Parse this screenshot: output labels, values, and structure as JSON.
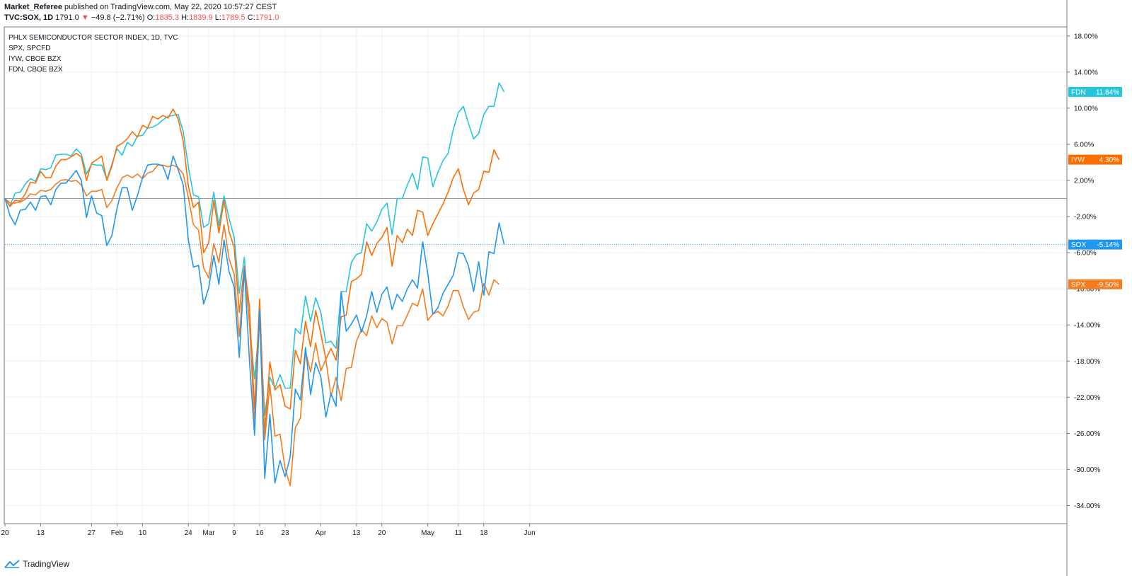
{
  "header": {
    "author": "Market_Referee",
    "published_text": "published on TradingView.com, May 22, 2020 10:57:27 CEST",
    "symbol": "TVC:SOX, 1D",
    "price": "1791.0",
    "change_arrow": "▼",
    "change": "−49.8 (−2.71%)",
    "open_label": "O:",
    "open": "1835.3",
    "high_label": "H:",
    "high": "1839.9",
    "low_label": "L:",
    "low": "1789.5",
    "close_label": "C:",
    "close": "1791.0"
  },
  "legend": [
    "PHLX SEMICONDUCTOR SECTOR INDEX, 1D, TVC",
    "SPX, SPCFD",
    "IYW, CBOE BZX",
    "FDN, CBOE BZX"
  ],
  "brand": "TradingView",
  "colors": {
    "SOX": "#2196f3",
    "SPX": "#f57c1f",
    "IYW": "#ff6d00",
    "FDN": "#26c6da"
  },
  "chart_data": {
    "type": "line",
    "title": "PHLX SEMICONDUCTOR SECTOR INDEX, 1D, TVC",
    "ylabel": "",
    "xlabel": "",
    "ylim": [
      -36,
      19
    ],
    "y_ticks": [
      "18.00%",
      "14.00%",
      "10.00%",
      "6.00%",
      "2.00%",
      "-2.00%",
      "-6.00%",
      "-10.00%",
      "-14.00%",
      "-18.00%",
      "-22.00%",
      "-26.00%",
      "-30.00%",
      "-34.00%"
    ],
    "x_tick_labels": [
      "20",
      "13",
      "27",
      "Feb",
      "10",
      "24",
      "Mar",
      "9",
      "16",
      "23",
      "Apr",
      "13",
      "20",
      "May",
      "11",
      "18",
      "Jun"
    ],
    "x_tick_index": [
      0,
      7,
      17,
      22,
      27,
      36,
      40,
      45,
      50,
      55,
      62,
      69,
      74,
      83,
      89,
      94,
      103
    ],
    "grid": true,
    "series": [
      {
        "name": "FDN",
        "last_label": "11.84%",
        "values": [
          0,
          -0.8,
          0.6,
          0.7,
          1.6,
          2.2,
          1.9,
          3.3,
          3.2,
          3.4,
          4.8,
          4.9,
          4.9,
          4.7,
          5.5,
          4.9,
          2.7,
          3.8,
          3.7,
          3.7,
          2.1,
          3.8,
          5.5,
          4.8,
          6.2,
          5.8,
          6.9,
          7.0,
          7.8,
          7.9,
          8.2,
          8.7,
          9.1,
          9.2,
          9.3,
          7.4,
          3.5,
          0.4,
          0.2,
          -3.2,
          -2.8,
          0.7,
          -3.0,
          0.3,
          -2.2,
          -4.3,
          -10.5,
          -6.5,
          -14.0,
          -20.0,
          -13.5,
          -24.0,
          -19.8,
          -21.0,
          -19.5,
          -21.0,
          -21.0,
          -14.4,
          -15.0,
          -10.8,
          -13.6,
          -11.0,
          -12.6,
          -16.0,
          -15.8,
          -16.6,
          -10.3,
          -10.3,
          -7.1,
          -6.2,
          -6.0,
          -2.8,
          -3.6,
          -2.6,
          -1.2,
          -0.5,
          -4.0,
          0.0,
          0.0,
          1.5,
          2.8,
          1.0,
          4.6,
          4.5,
          1.3,
          2.9,
          4.2,
          5.0,
          7.6,
          9.5,
          10.2,
          8.3,
          6.6,
          7.2,
          9.3,
          10.2,
          10.2,
          12.8,
          11.8
        ]
      },
      {
        "name": "IYW",
        "last_label": "4.30%",
        "values": [
          0,
          -0.9,
          -0.2,
          -0.3,
          0.5,
          1.8,
          1.7,
          3.0,
          2.3,
          2.3,
          3.6,
          4.3,
          4.3,
          4.6,
          5.0,
          4.6,
          2.0,
          3.9,
          4.3,
          4.7,
          2.0,
          3.6,
          5.8,
          6.1,
          6.6,
          7.4,
          6.8,
          8.1,
          7.8,
          9.1,
          8.8,
          9.2,
          8.9,
          9.9,
          8.8,
          6.3,
          1.4,
          -1.0,
          -0.4,
          -6.0,
          -4.9,
          -0.2,
          -3.8,
          -0.2,
          -3.7,
          -5.4,
          -12.6,
          -7.5,
          -12.0,
          -23.3,
          -11.1,
          -26.1,
          -18.1,
          -21.2,
          -20.6,
          -23.0,
          -23.3,
          -16.8,
          -18.3,
          -13.6,
          -16.4,
          -12.4,
          -14.9,
          -17.8,
          -16.6,
          -17.9,
          -13.1,
          -12.9,
          -9.2,
          -8.9,
          -8.4,
          -4.8,
          -6.3,
          -5.0,
          -4.3,
          -3.2,
          -7.5,
          -4.1,
          -4.9,
          -3.4,
          -4.1,
          -1.3,
          -1.5,
          -4.1,
          -2.8,
          -1.7,
          -0.6,
          0.7,
          2.3,
          3.3,
          1.0,
          -0.7,
          0.6,
          1.0,
          3.0,
          2.9,
          5.4,
          4.3
        ]
      },
      {
        "name": "SPX",
        "last_label": "-9.50%",
        "values": [
          0,
          -0.5,
          -0.5,
          -0.4,
          -0.1,
          0.5,
          0.4,
          0.9,
          0.8,
          1.0,
          1.6,
          2.0,
          2.1,
          1.9,
          2.0,
          1.5,
          0.3,
          0.8,
          0.8,
          1.0,
          -1.0,
          -0.2,
          1.2,
          2.3,
          2.6,
          2.3,
          2.7,
          2.2,
          2.8,
          3.0,
          3.7,
          3.7,
          3.5,
          3.7,
          3.4,
          2.7,
          0.1,
          -2.9,
          -3.5,
          -7.7,
          -8.8,
          -5.0,
          -7.1,
          -2.9,
          -6.7,
          -8.4,
          -15.3,
          -8.1,
          -13.7,
          -25.0,
          -12.8,
          -26.7,
          -20.6,
          -26.3,
          -26.1,
          -29.9,
          -31.8,
          -25.4,
          -24.3,
          -16.9,
          -19.2,
          -16.0,
          -19.1,
          -17.8,
          -21.9,
          -19.8,
          -22.4,
          -18.8,
          -18.7,
          -15.8,
          -14.5,
          -15.2,
          -13.0,
          -14.3,
          -13.3,
          -13.7,
          -16.1,
          -14.1,
          -14.1,
          -12.9,
          -11.6,
          -11.9,
          -10.0,
          -13.5,
          -12.8,
          -12.5,
          -13.0,
          -11.9,
          -10.2,
          -10.2,
          -12.0,
          -13.4,
          -12.6,
          -12.4,
          -9.4,
          -10.7,
          -9.0,
          -9.5
        ]
      },
      {
        "name": "SOX",
        "last_label": "-5.14%",
        "values": [
          0,
          -1.9,
          -2.9,
          -1.3,
          -1.2,
          -0.4,
          -1.3,
          0.2,
          0.3,
          -0.7,
          1.0,
          1.7,
          1.7,
          2.4,
          3.1,
          2.0,
          -2.1,
          0.3,
          -1.6,
          -1.9,
          -5.2,
          -4.1,
          -1.1,
          1.2,
          1.2,
          -1.3,
          0.3,
          2.3,
          3.7,
          3.8,
          3.8,
          3.6,
          2.1,
          4.7,
          3.2,
          1.5,
          -4.6,
          -7.6,
          -7.4,
          -11.7,
          -9.9,
          -6.3,
          -9.5,
          -4.6,
          -8.1,
          -9.8,
          -17.6,
          -7.8,
          -18.0,
          -26.2,
          -12.3,
          -31.0,
          -23.9,
          -31.5,
          -29.0,
          -30.8,
          -28.6,
          -21.1,
          -22.3,
          -16.5,
          -21.7,
          -18.2,
          -19.7,
          -24.2,
          -21.6,
          -23.0,
          -10.3,
          -14.7,
          -13.9,
          -12.9,
          -14.8,
          -13.0,
          -10.3,
          -12.6,
          -10.6,
          -9.8,
          -12.3,
          -10.6,
          -11.4,
          -10.0,
          -9.0,
          -9.9,
          -4.8,
          -8.3,
          -12.8,
          -12.1,
          -10.5,
          -9.5,
          -8.5,
          -6.0,
          -6.1,
          -7.5,
          -10.3,
          -7.0,
          -10.7,
          -5.9,
          -6.1,
          -2.7,
          -5.1
        ]
      }
    ]
  }
}
